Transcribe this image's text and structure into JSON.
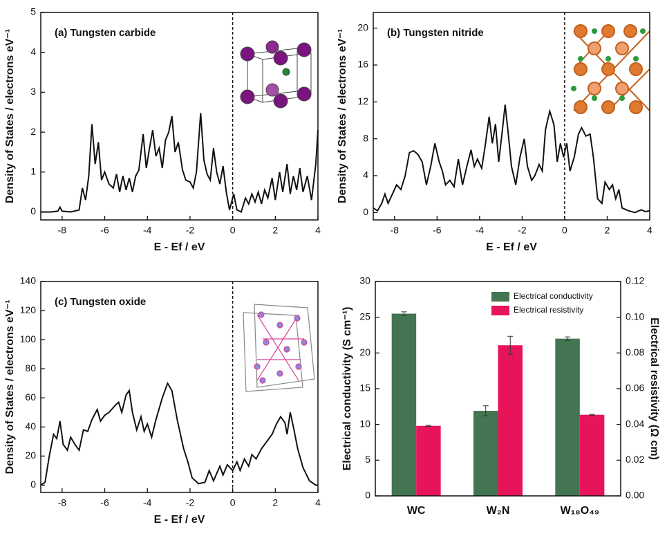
{
  "chart_data": [
    {
      "type": "line",
      "title": "(a) Tungsten carbide",
      "x_label": "E - Ef / eV",
      "y_label": "Density of States  /  electrons eV⁻¹",
      "xlim": [
        -9,
        4
      ],
      "ylim": [
        -0.2,
        5
      ],
      "xticks": [
        -8,
        -6,
        -4,
        -2,
        0,
        2,
        4
      ],
      "yticks": [
        0,
        1,
        2,
        3,
        4,
        5
      ],
      "vline": 0,
      "x": [
        -9,
        -8.5,
        -8.2,
        -8.1,
        -8.0,
        -7.6,
        -7.2,
        -7.05,
        -6.9,
        -6.75,
        -6.6,
        -6.45,
        -6.3,
        -6.15,
        -6.0,
        -5.8,
        -5.6,
        -5.45,
        -5.3,
        -5.15,
        -5.0,
        -4.85,
        -4.7,
        -4.55,
        -4.4,
        -4.2,
        -4.05,
        -3.9,
        -3.75,
        -3.6,
        -3.45,
        -3.3,
        -3.15,
        -3.0,
        -2.85,
        -2.7,
        -2.55,
        -2.35,
        -2.2,
        -2.0,
        -1.85,
        -1.7,
        -1.5,
        -1.35,
        -1.2,
        -1.05,
        -0.9,
        -0.75,
        -0.6,
        -0.45,
        -0.3,
        -0.15,
        0.05,
        0.2,
        0.4,
        0.6,
        0.75,
        0.9,
        1.05,
        1.2,
        1.35,
        1.5,
        1.65,
        1.85,
        2.0,
        2.2,
        2.35,
        2.55,
        2.7,
        2.85,
        3.0,
        3.15,
        3.3,
        3.5,
        3.7,
        3.9,
        4.0
      ],
      "series": [
        {
          "color": "#111111",
          "values": [
            0,
            0,
            0.02,
            0.12,
            0.02,
            0,
            0.05,
            0.6,
            0.3,
            0.9,
            2.2,
            1.2,
            1.75,
            0.8,
            1.0,
            0.7,
            0.6,
            0.95,
            0.5,
            0.9,
            0.55,
            0.85,
            0.5,
            0.9,
            1.05,
            1.95,
            1.1,
            1.6,
            2.05,
            1.4,
            1.6,
            1.1,
            1.8,
            2.0,
            2.4,
            1.5,
            1.75,
            1.05,
            0.8,
            0.75,
            0.6,
            1.0,
            2.48,
            1.3,
            0.95,
            0.8,
            1.6,
            1.0,
            0.7,
            1.15,
            0.5,
            0.05,
            0.45,
            0.05,
            0,
            0.35,
            0.2,
            0.45,
            0.25,
            0.5,
            0.2,
            0.55,
            0.35,
            0.85,
            0.3,
            1.0,
            0.5,
            1.2,
            0.45,
            0.9,
            0.55,
            1.1,
            0.5,
            0.9,
            0.3,
            1.2,
            2.05
          ]
        }
      ]
    },
    {
      "type": "line",
      "title": "(b) Tungsten nitride",
      "x_label": "E - Ef / eV",
      "y_label": "Density of States  /  electrons eV⁻¹",
      "xlim": [
        -9,
        4
      ],
      "ylim": [
        -0.8,
        21.7
      ],
      "xticks": [
        -8,
        -6,
        -4,
        -2,
        0,
        2,
        4
      ],
      "yticks": [
        0,
        4,
        8,
        12,
        16,
        20
      ],
      "vline": 0,
      "x": [
        -9,
        -8.8,
        -8.6,
        -8.45,
        -8.3,
        -8.1,
        -7.9,
        -7.7,
        -7.5,
        -7.3,
        -7.1,
        -6.9,
        -6.7,
        -6.5,
        -6.3,
        -6.1,
        -5.9,
        -5.75,
        -5.6,
        -5.4,
        -5.2,
        -5.0,
        -4.8,
        -4.6,
        -4.4,
        -4.25,
        -4.1,
        -3.9,
        -3.75,
        -3.55,
        -3.4,
        -3.25,
        -3.1,
        -2.95,
        -2.8,
        -2.65,
        -2.5,
        -2.3,
        -2.1,
        -1.9,
        -1.75,
        -1.55,
        -1.4,
        -1.2,
        -1.05,
        -0.9,
        -0.7,
        -0.5,
        -0.35,
        -0.2,
        -0.05,
        0.1,
        0.25,
        0.45,
        0.65,
        0.8,
        1.0,
        1.2,
        1.35,
        1.55,
        1.75,
        1.9,
        2.1,
        2.25,
        2.4,
        2.55,
        2.7,
        3.0,
        3.3,
        3.6,
        3.8,
        4.0
      ],
      "series": [
        {
          "color": "#111111",
          "values": [
            0.5,
            0.2,
            1.0,
            2.0,
            1.0,
            2.0,
            3.0,
            2.5,
            4.0,
            6.5,
            6.7,
            6.3,
            5.5,
            3.0,
            5.0,
            7.5,
            5.5,
            4.5,
            3.0,
            3.5,
            2.8,
            5.8,
            3.0,
            5.0,
            6.8,
            5.0,
            5.8,
            4.8,
            7.0,
            10.4,
            7.5,
            9.6,
            5.5,
            8.5,
            11.7,
            8.5,
            5.0,
            3.0,
            6.0,
            8.0,
            5.0,
            3.5,
            4.0,
            5.2,
            4.5,
            9.0,
            11.0,
            9.5,
            5.5,
            7.5,
            6.0,
            7.5,
            4.5,
            6.0,
            8.5,
            9.2,
            8.3,
            8.5,
            6.0,
            1.5,
            1.0,
            3.3,
            2.5,
            3.0,
            1.5,
            2.5,
            0.5,
            0.2,
            0,
            0.3,
            0.1,
            0.2
          ]
        }
      ]
    },
    {
      "type": "line",
      "title": "(c) Tungsten oxide",
      "x_label": "E - Ef / eV",
      "y_label": "Density of States  /  electrons eV⁻¹",
      "xlim": [
        -9,
        4
      ],
      "ylim": [
        -5,
        140
      ],
      "xticks": [
        -8,
        -6,
        -4,
        -2,
        0,
        2,
        4
      ],
      "yticks": [
        0,
        20,
        40,
        60,
        80,
        100,
        120,
        140
      ],
      "vline": 0,
      "x": [
        -9,
        -8.8,
        -8.6,
        -8.4,
        -8.25,
        -8.1,
        -7.95,
        -7.75,
        -7.6,
        -7.4,
        -7.2,
        -7.0,
        -6.8,
        -6.6,
        -6.35,
        -6.2,
        -6.0,
        -5.8,
        -5.5,
        -5.35,
        -5.2,
        -5.0,
        -4.85,
        -4.7,
        -4.5,
        -4.3,
        -4.15,
        -4.0,
        -3.8,
        -3.6,
        -3.3,
        -3.05,
        -2.85,
        -2.6,
        -2.3,
        -2.1,
        -1.9,
        -1.6,
        -1.3,
        -1.1,
        -0.9,
        -0.6,
        -0.45,
        -0.25,
        0,
        0.2,
        0.35,
        0.55,
        0.75,
        0.9,
        1.1,
        1.35,
        1.6,
        1.85,
        2.05,
        2.25,
        2.45,
        2.55,
        2.7,
        2.85,
        3.05,
        3.3,
        3.6,
        3.9,
        4.0
      ],
      "series": [
        {
          "color": "#111111",
          "values": [
            0,
            2,
            20,
            35,
            32,
            44,
            28,
            24,
            33,
            28,
            24,
            38,
            37,
            45,
            52,
            44,
            48,
            50,
            55,
            57,
            50,
            62,
            65,
            50,
            38,
            47,
            37,
            42,
            33,
            45,
            60,
            70,
            65,
            45,
            25,
            16,
            5,
            1,
            2,
            10,
            3,
            13,
            7,
            14,
            10,
            16,
            10,
            18,
            13,
            21,
            18,
            25,
            30,
            35,
            42,
            47,
            43,
            35,
            50,
            40,
            25,
            12,
            3,
            0,
            0
          ]
        }
      ]
    },
    {
      "type": "bar",
      "y_label": "Electrical conductivity (S cm⁻¹)",
      "y2_label": "Electrical resistivity (Ω cm)",
      "categories": [
        "WC",
        "W₂N",
        "W₁₈O₄₉"
      ],
      "ylim": [
        0,
        30
      ],
      "yticks": [
        0,
        5,
        10,
        15,
        20,
        25,
        30
      ],
      "y2lim": [
        0,
        0.12
      ],
      "y2ticks": [
        {
          "value": 0,
          "label": "0.00"
        },
        {
          "value": 0.02,
          "label": "0.02"
        },
        {
          "value": 0.04,
          "label": "0.04"
        },
        {
          "value": 0.06,
          "label": "0.06"
        },
        {
          "value": 0.08,
          "label": "0.08"
        },
        {
          "value": 0.1,
          "label": "0.10"
        },
        {
          "value": 0.12,
          "label": "0.12"
        }
      ],
      "series": [
        {
          "name": "Electrical conductivity",
          "color": "#437553",
          "values": [
            25.5,
            11.9,
            22.0
          ],
          "errors": [
            0.25,
            0.7,
            0.25
          ]
        },
        {
          "name": "Electrical resistivity",
          "color": "#e8145a",
          "axis": "y2",
          "values": [
            0.0392,
            0.0843,
            0.0454
          ],
          "errors": [
            0.0003,
            0.005,
            0.0003
          ]
        }
      ]
    }
  ]
}
